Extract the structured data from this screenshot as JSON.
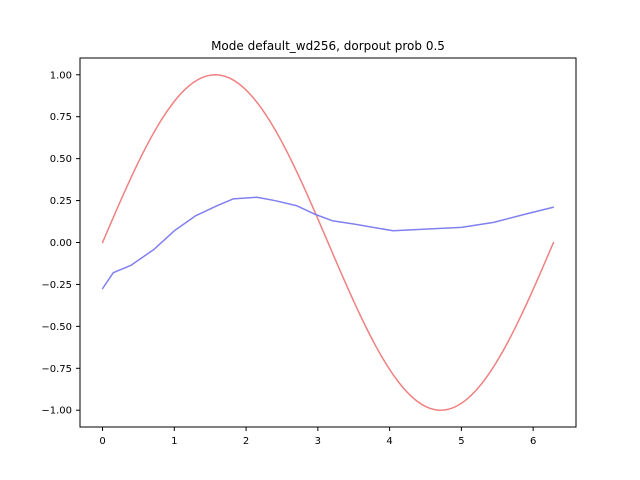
{
  "chart_data": {
    "type": "line",
    "title": "Mode default_wd256, dorpout prob 0.5",
    "xlabel": "",
    "ylabel": "",
    "xlim": [
      -0.314,
      6.597
    ],
    "ylim": [
      -1.1,
      1.1
    ],
    "x_ticks": [
      0,
      1,
      2,
      3,
      4,
      5,
      6
    ],
    "x_tick_labels": [
      "0",
      "1",
      "2",
      "3",
      "4",
      "5",
      "6"
    ],
    "y_ticks": [
      1.0,
      0.75,
      0.5,
      0.25,
      0.0,
      -0.25,
      -0.5,
      -0.75,
      -1.0
    ],
    "y_tick_labels": [
      "1.00",
      "0.75",
      "0.50",
      "0.25",
      "0.00",
      "−0.25",
      "−0.50",
      "−0.75",
      "−1.00"
    ],
    "grid": false,
    "legend": "none",
    "series": [
      {
        "color": "#f08080",
        "function": "sin",
        "x_range": [
          0,
          6.283
        ],
        "samples": 100
      },
      {
        "color": "#8080f0",
        "x": [
          0.0,
          0.15,
          0.4,
          0.72,
          1.0,
          1.3,
          1.6,
          1.82,
          2.15,
          2.4,
          2.7,
          2.95,
          3.2,
          3.5,
          4.05,
          4.5,
          5.0,
          5.45,
          5.9,
          6.28
        ],
        "y": [
          -0.275,
          -0.18,
          -0.135,
          -0.04,
          0.07,
          0.16,
          0.22,
          0.26,
          0.27,
          0.25,
          0.22,
          0.17,
          0.13,
          0.11,
          0.07,
          0.08,
          0.09,
          0.12,
          0.17,
          0.21
        ]
      }
    ]
  }
}
